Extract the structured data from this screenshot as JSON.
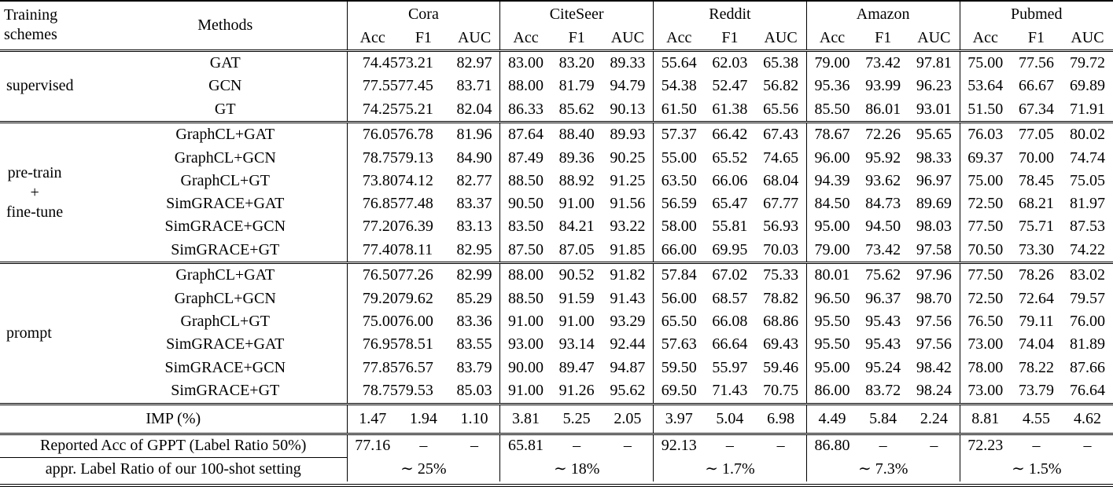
{
  "page": {
    "background": "#ffffff",
    "text_color": "#000000",
    "rule_color": "#000000"
  },
  "table": {
    "header": {
      "scheme_lines": [
        "Training",
        "schemes"
      ],
      "methods_col": "Methods",
      "datasets": [
        "Cora",
        "CiteSeer",
        "Reddit",
        "Amazon",
        "Pubmed"
      ],
      "metrics": [
        "Acc",
        "F1",
        "AUC"
      ]
    },
    "sections": [
      {
        "scheme_lines": [
          "supervised"
        ],
        "rows": [
          {
            "method": "GAT",
            "values": [
              "74.45",
              "73.21",
              "82.97",
              "83.00",
              "83.20",
              "89.33",
              "55.64",
              "62.03",
              "65.38",
              "79.00",
              "73.42",
              "97.81",
              "75.00",
              "77.56",
              "79.72"
            ]
          },
          {
            "method": "GCN",
            "values": [
              "77.55",
              "77.45",
              "83.71",
              "88.00",
              "81.79",
              "94.79",
              "54.38",
              "52.47",
              "56.82",
              "95.36",
              "93.99",
              "96.23",
              "53.64",
              "66.67",
              "69.89"
            ]
          },
          {
            "method": "GT",
            "values": [
              "74.25",
              "75.21",
              "82.04",
              "86.33",
              "85.62",
              "90.13",
              "61.50",
              "61.38",
              "65.56",
              "85.50",
              "86.01",
              "93.01",
              "51.50",
              "67.34",
              "71.91"
            ]
          }
        ]
      },
      {
        "scheme_lines": [
          "pre-train",
          "+",
          "fine-tune"
        ],
        "rows": [
          {
            "method": "GraphCL+GAT",
            "values": [
              "76.05",
              "76.78",
              "81.96",
              "87.64",
              "88.40",
              "89.93",
              "57.37",
              "66.42",
              "67.43",
              "78.67",
              "72.26",
              "95.65",
              "76.03",
              "77.05",
              "80.02"
            ]
          },
          {
            "method": "GraphCL+GCN",
            "values": [
              "78.75",
              "79.13",
              "84.90",
              "87.49",
              "89.36",
              "90.25",
              "55.00",
              "65.52",
              "74.65",
              "96.00",
              "95.92",
              "98.33",
              "69.37",
              "70.00",
              "74.74"
            ]
          },
          {
            "method": "GraphCL+GT",
            "values": [
              "73.80",
              "74.12",
              "82.77",
              "88.50",
              "88.92",
              "91.25",
              "63.50",
              "66.06",
              "68.04",
              "94.39",
              "93.62",
              "96.97",
              "75.00",
              "78.45",
              "75.05"
            ]
          },
          {
            "method": "SimGRACE+GAT",
            "values": [
              "76.85",
              "77.48",
              "83.37",
              "90.50",
              "91.00",
              "91.56",
              "56.59",
              "65.47",
              "67.77",
              "84.50",
              "84.73",
              "89.69",
              "72.50",
              "68.21",
              "81.97"
            ]
          },
          {
            "method": "SimGRACE+GCN",
            "values": [
              "77.20",
              "76.39",
              "83.13",
              "83.50",
              "84.21",
              "93.22",
              "58.00",
              "55.81",
              "56.93",
              "95.00",
              "94.50",
              "98.03",
              "77.50",
              "75.71",
              "87.53"
            ]
          },
          {
            "method": "SimGRACE+GT",
            "values": [
              "77.40",
              "78.11",
              "82.95",
              "87.50",
              "87.05",
              "91.85",
              "66.00",
              "69.95",
              "70.03",
              "79.00",
              "73.42",
              "97.58",
              "70.50",
              "73.30",
              "74.22"
            ]
          }
        ]
      },
      {
        "scheme_lines": [
          "prompt"
        ],
        "rows": [
          {
            "method": "GraphCL+GAT",
            "values": [
              "76.50",
              "77.26",
              "82.99",
              "88.00",
              "90.52",
              "91.82",
              "57.84",
              "67.02",
              "75.33",
              "80.01",
              "75.62",
              "97.96",
              "77.50",
              "78.26",
              "83.02"
            ]
          },
          {
            "method": "GraphCL+GCN",
            "values": [
              "79.20",
              "79.62",
              "85.29",
              "88.50",
              "91.59",
              "91.43",
              "56.00",
              "68.57",
              "78.82",
              "96.50",
              "96.37",
              "98.70",
              "72.50",
              "72.64",
              "79.57"
            ]
          },
          {
            "method": "GraphCL+GT",
            "values": [
              "75.00",
              "76.00",
              "83.36",
              "91.00",
              "91.00",
              "93.29",
              "65.50",
              "66.08",
              "68.86",
              "95.50",
              "95.43",
              "97.56",
              "76.50",
              "79.11",
              "76.00"
            ]
          },
          {
            "method": "SimGRACE+GAT",
            "values": [
              "76.95",
              "78.51",
              "83.55",
              "93.00",
              "93.14",
              "92.44",
              "57.63",
              "66.64",
              "69.43",
              "95.50",
              "95.43",
              "97.56",
              "73.00",
              "74.04",
              "81.89"
            ]
          },
          {
            "method": "SimGRACE+GCN",
            "values": [
              "77.85",
              "76.57",
              "83.79",
              "90.00",
              "89.47",
              "94.87",
              "59.50",
              "55.97",
              "59.46",
              "95.00",
              "95.24",
              "98.42",
              "78.00",
              "78.22",
              "87.66"
            ]
          },
          {
            "method": "SimGRACE+GT",
            "values": [
              "78.75",
              "79.53",
              "85.03",
              "91.00",
              "91.26",
              "95.62",
              "69.50",
              "71.43",
              "70.75",
              "86.00",
              "83.72",
              "98.24",
              "73.00",
              "73.79",
              "76.64"
            ]
          }
        ]
      }
    ],
    "imp_row": {
      "label": "IMP (%)",
      "values": [
        "1.47",
        "1.94",
        "1.10",
        "3.81",
        "5.25",
        "2.05",
        "3.97",
        "5.04",
        "6.98",
        "4.49",
        "5.84",
        "2.24",
        "8.81",
        "4.55",
        "4.62"
      ]
    },
    "gppt_row": {
      "label": "Reported Acc of GPPT (Label Ratio 50%)",
      "values": [
        "77.16",
        "–",
        "–",
        "65.81",
        "–",
        "–",
        "92.13",
        "–",
        "–",
        "86.80",
        "–",
        "–",
        "72.23",
        "–",
        "–"
      ]
    },
    "ratio_row": {
      "label": "appr. Label Ratio of our 100-shot setting",
      "values": [
        "∼ 25%",
        "∼ 18%",
        "∼ 1.7%",
        "∼ 7.3%",
        "∼ 1.5%"
      ]
    }
  }
}
